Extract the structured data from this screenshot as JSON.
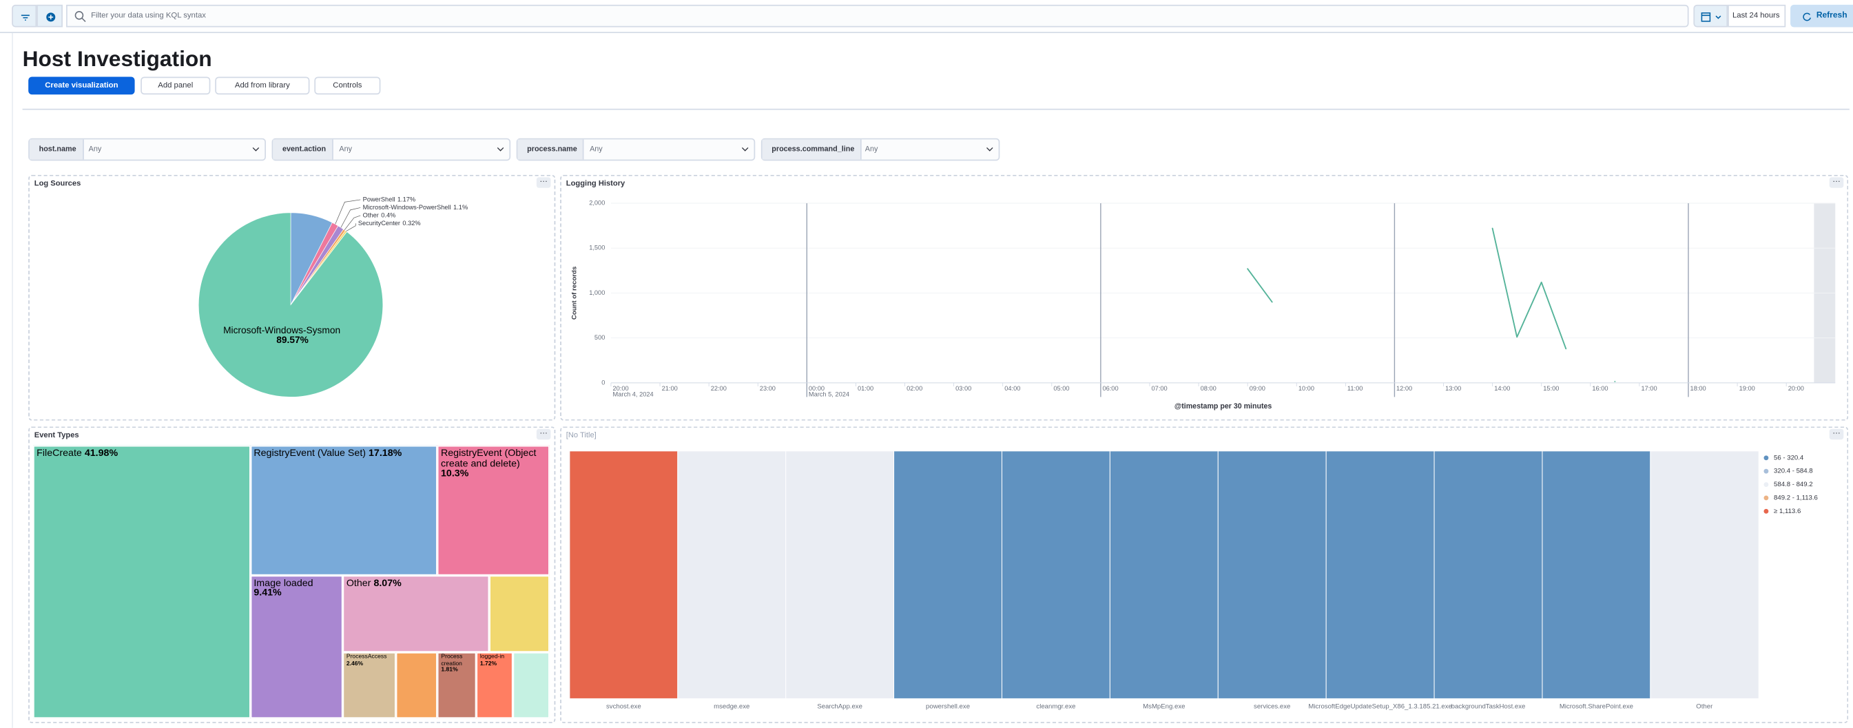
{
  "toolbar": {
    "search_placeholder": "Filter your data using KQL syntax",
    "time_range": "Last 24 hours",
    "refresh": "Refresh"
  },
  "header": {
    "title": "Host Investigation",
    "buttons": [
      "Create visualization",
      "Add panel",
      "Add from library",
      "Controls"
    ]
  },
  "filters": [
    {
      "field": "host.name",
      "value": "Any"
    },
    {
      "field": "event.action",
      "value": "Any"
    },
    {
      "field": "process.name",
      "value": "Any"
    },
    {
      "field": "process.command_line",
      "value": "Any"
    }
  ],
  "chart_data": [
    {
      "type": "pie",
      "title": "Log Sources",
      "categories": [
        null,
        "PowerShell",
        "Microsoft-Windows-PowerShell",
        "Other",
        "SecurityCenter",
        "Microsoft-Windows-Sysmon"
      ],
      "values": [
        7.44,
        1.17,
        1.1,
        0.4,
        0.32,
        89.57
      ],
      "value_labels": [
        null,
        "1.17%",
        "1.1%",
        "0.4%",
        "0.32%",
        "89.57%"
      ],
      "colors": [
        "#79aad9",
        "#ee789d",
        "#a987d1",
        "#f5a35c",
        "#f1d86f",
        "#6dccb1"
      ]
    },
    {
      "type": "line",
      "title": "Logging History",
      "x_label": "@timestamp per 30 minutes",
      "y_label": "Count of records",
      "x": [
        "2024-03-05T09:00",
        "2024-03-05T09:30",
        "2024-03-05T10:00",
        "2024-03-05T14:00",
        "2024-03-05T14:30",
        "2024-03-05T15:00",
        "2024-03-05T15:30",
        "2024-03-05T16:00",
        "2024-03-05T16:30"
      ],
      "values": [
        1270,
        900,
        null,
        1720,
        510,
        1120,
        380,
        null,
        15
      ],
      "color": "#54b399",
      "xlim": [
        "2024-03-04T20:00",
        "2024-03-05T21:00"
      ],
      "ylim": [
        0,
        2000
      ],
      "yticks": [
        0,
        500,
        {
          "value": 1000,
          "label": "1,000"
        },
        {
          "value": 1500,
          "label": "1,500"
        },
        {
          "value": 2000,
          "label": "2,000"
        }
      ],
      "xticks": [
        {
          "value": "2024-03-04T20:00",
          "label": "20:00"
        },
        {
          "value": "2024-03-04T21:00",
          "label": "21:00"
        },
        {
          "value": "2024-03-04T22:00",
          "label": "22:00"
        },
        {
          "value": "2024-03-04T23:00",
          "label": "23:00"
        },
        {
          "value": "2024-03-05T00:00",
          "label": "00:00"
        },
        {
          "value": "2024-03-05T01:00",
          "label": "01:00"
        },
        {
          "value": "2024-03-05T02:00",
          "label": "02:00"
        },
        {
          "value": "2024-03-05T03:00",
          "label": "03:00"
        },
        {
          "value": "2024-03-05T04:00",
          "label": "04:00"
        },
        {
          "value": "2024-03-05T05:00",
          "label": "05:00"
        },
        {
          "value": "2024-03-05T06:00",
          "label": "06:00"
        },
        {
          "value": "2024-03-05T07:00",
          "label": "07:00"
        },
        {
          "value": "2024-03-05T08:00",
          "label": "08:00"
        },
        {
          "value": "2024-03-05T09:00",
          "label": "09:00"
        },
        {
          "value": "2024-03-05T10:00",
          "label": "10:00"
        },
        {
          "value": "2024-03-05T11:00",
          "label": "11:00"
        },
        {
          "value": "2024-03-05T12:00",
          "label": "12:00"
        },
        {
          "value": "2024-03-05T13:00",
          "label": "13:00"
        },
        {
          "value": "2024-03-05T14:00",
          "label": "14:00"
        },
        {
          "value": "2024-03-05T15:00",
          "label": "15:00"
        },
        {
          "value": "2024-03-05T16:00",
          "label": "16:00"
        },
        {
          "value": "2024-03-05T17:00",
          "label": "17:00"
        },
        {
          "value": "2024-03-05T18:00",
          "label": "18:00"
        },
        {
          "value": "2024-03-05T19:00",
          "label": "19:00"
        },
        {
          "value": "2024-03-05T20:00",
          "label": "20:00"
        }
      ],
      "x_date_labels": [
        {
          "value": "2024-03-04T20:00",
          "label": "March 4, 2024"
        },
        {
          "value": "2024-03-05T00:00",
          "label": "March 5, 2024"
        }
      ],
      "grid": true
    },
    {
      "type": "treemap",
      "title": "Event Types",
      "categories": [
        "FileCreate",
        "RegistryEvent (Value Set)",
        "RegistryEvent (Object create and delete)",
        "Image loaded",
        "Other",
        null,
        "ProcessAccess",
        null,
        "Process creation",
        "logged-in",
        null
      ],
      "values": [
        41.98,
        17.18,
        10.3,
        9.41,
        8.07,
        3.3,
        2.46,
        1.95,
        1.81,
        1.72,
        1.68
      ],
      "value_labels": [
        "41.98%",
        "17.18%",
        "10.3%",
        "9.41%",
        "8.07%",
        null,
        "2.46%",
        null,
        "1.81%",
        "1.72%",
        null
      ],
      "colors": [
        "#6dccb1",
        "#79aad9",
        "#ee789d",
        "#a987d1",
        "#e4a6c7",
        "#f1d86f",
        "#d6bf9b",
        "#f5a35c",
        "#c47c6c",
        "#ff7e62",
        "#c5f1e2"
      ]
    },
    {
      "type": "heatmap",
      "title": "[No Title]",
      "categories": [
        "svchost.exe",
        "msedge.exe",
        "SearchApp.exe",
        "powershell.exe",
        "cleanmgr.exe",
        "MsMpEng.exe",
        "services.exe",
        "MicrosoftEdgeUpdateSetup_X86_1.3.185.21.exe",
        "backgroundTaskHost.exe",
        "Microsoft.SharePoint.exe",
        "Other"
      ],
      "values": [
        1378,
        null,
        null,
        56,
        56,
        56,
        56,
        56,
        56,
        56,
        null
      ],
      "color_ranges": [
        {
          "from": 56,
          "to": 320.4,
          "label": "56 - 320.4",
          "color": "#6092c0"
        },
        {
          "from": 320.4,
          "to": 584.8,
          "label": "320.4 - 584.8",
          "color": "#a8bfda"
        },
        {
          "from": 584.8,
          "to": 849.2,
          "label": "584.8 - 849.2",
          "color": "#ebeff5"
        },
        {
          "from": 849.2,
          "to": 1113.6,
          "label": "849.2 - 1,113.6",
          "color": "#ecb385"
        },
        {
          "from": 1113.6,
          "label": "≥ 1,113.6",
          "color": "#e7664c"
        }
      ]
    }
  ]
}
